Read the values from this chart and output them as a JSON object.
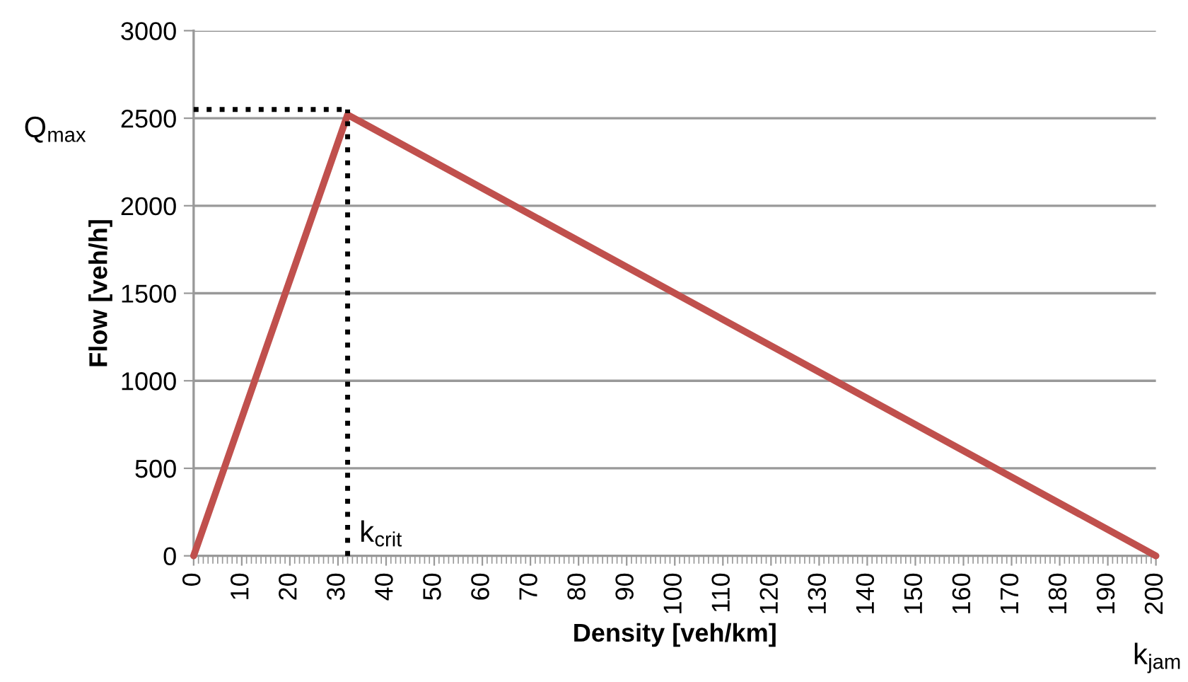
{
  "chart_data": {
    "type": "line",
    "xlabel": "Density [veh/km]",
    "ylabel": "Flow [veh/h]",
    "series": [
      {
        "color": "#c0504d",
        "x": [
          0,
          32,
          200
        ],
        "values": [
          0,
          2520,
          0
        ],
        "line_style": "solid"
      },
      {
        "color": "#000000",
        "x": [
          0,
          32
        ],
        "values": [
          2550,
          2550
        ],
        "line_style": "dotted"
      },
      {
        "color": "#000000",
        "x": [
          32,
          32
        ],
        "values": [
          0,
          2550
        ],
        "line_style": "dotted"
      }
    ],
    "xlim": [
      0,
      200
    ],
    "xticks": [
      0,
      10,
      20,
      30,
      40,
      50,
      60,
      70,
      80,
      90,
      100,
      110,
      120,
      130,
      140,
      150,
      160,
      170,
      180,
      190,
      200
    ],
    "ylim": [
      0,
      3000
    ],
    "yticks": [
      0,
      500,
      1000,
      1500,
      2000,
      2500,
      3000
    ],
    "grid": "y",
    "annotations": [
      "Q$_{max}$",
      {
        "text": "k$_{crit}$",
        "x": 32,
        "y": 0
      },
      "k$_{jam}$"
    ]
  }
}
